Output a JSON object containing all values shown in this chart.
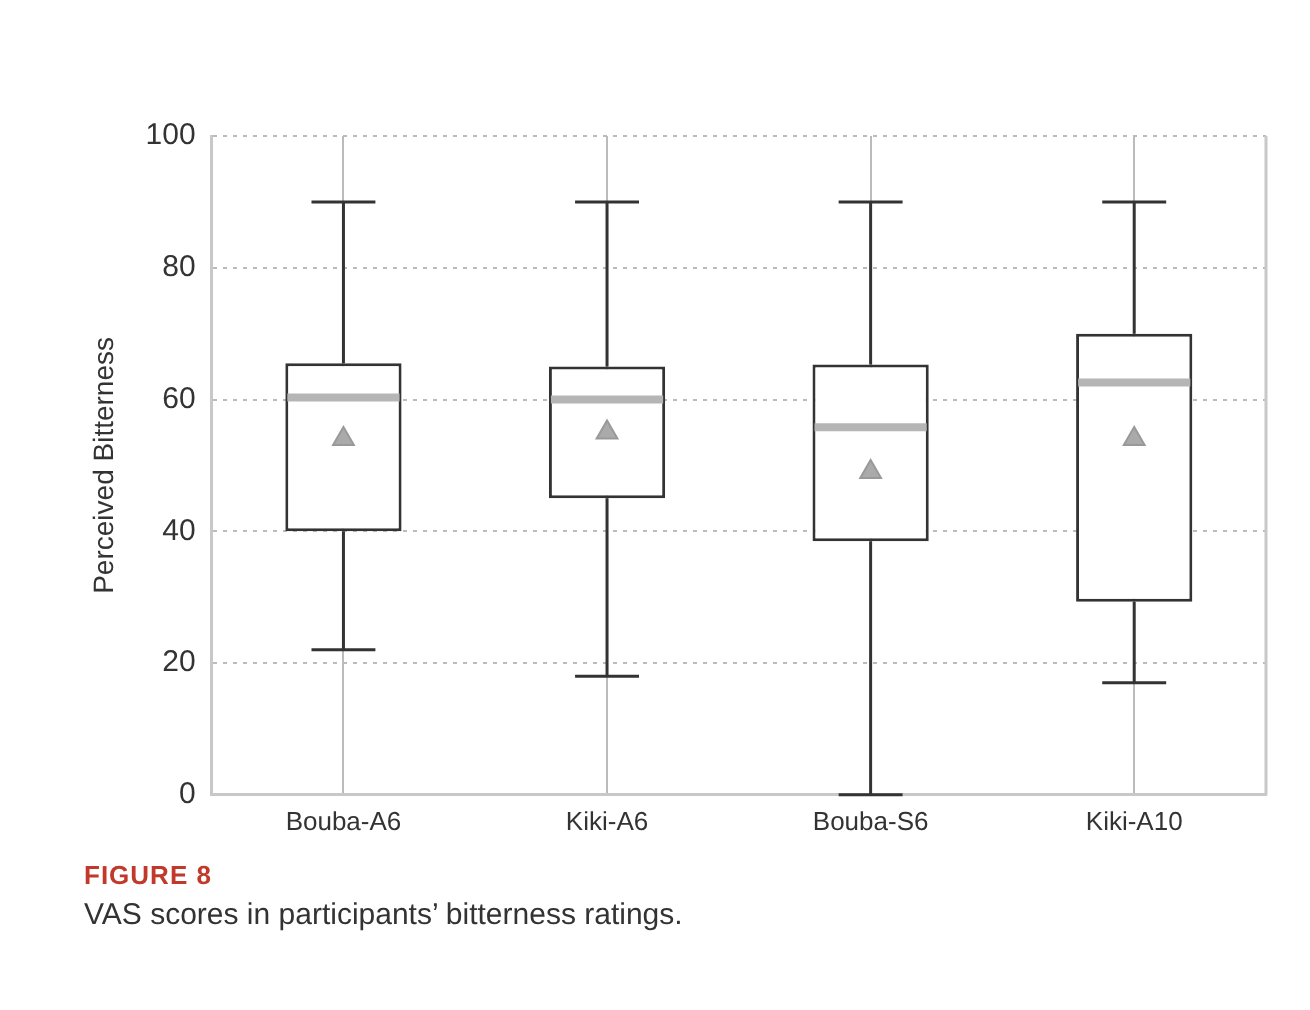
{
  "chart_data": {
    "type": "box",
    "ylabel": "Perceived Bitterness",
    "categories": [
      "Bouba-A6",
      "Kiki-A6",
      "Bouba-S6",
      "Kiki-A10"
    ],
    "boxes": [
      {
        "low": 22,
        "q1": 40,
        "median": 60.3,
        "q3": 65.5,
        "high": 90,
        "mean": 54
      },
      {
        "low": 18,
        "q1": 45,
        "median": 60,
        "q3": 65,
        "high": 90,
        "mean": 55
      },
      {
        "low": 0,
        "q1": 38.5,
        "median": 55.8,
        "q3": 65.3,
        "high": 90,
        "mean": 49
      },
      {
        "low": 17,
        "q1": 29.3,
        "median": 62.6,
        "q3": 70,
        "high": 90,
        "mean": 54
      }
    ],
    "ylim": [
      0,
      100
    ],
    "yticks": [
      0,
      20,
      40,
      60,
      80,
      100
    ],
    "grid": true,
    "marker": "triangle",
    "annotations": [
      "FIGURE 8",
      "VAS scores in participants’ bitterness ratings."
    ]
  }
}
